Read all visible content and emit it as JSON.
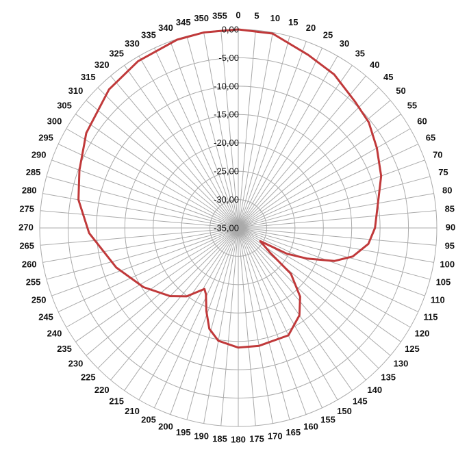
{
  "chart_data": {
    "type": "polar",
    "x": [
      0,
      10,
      22,
      32,
      43,
      51,
      60,
      70,
      80,
      90,
      97,
      104,
      109,
      114,
      118,
      121,
      128,
      131,
      138,
      145,
      155,
      170,
      180,
      190,
      196,
      201,
      206,
      209,
      217,
      225,
      238,
      252,
      268,
      280,
      290,
      302,
      317,
      329,
      342,
      350
    ],
    "series": [
      {
        "color": "#c0393a",
        "values": [
          0,
          -0.2,
          -2.1,
          -3.1,
          -4.7,
          -5.4,
          -6.8,
          -8.2,
          -10.0,
          -10.9,
          -11.9,
          -14.2,
          -17.1,
          -21.7,
          -25.3,
          -30.5,
          -27.8,
          -22.7,
          -18.7,
          -16.2,
          -14.1,
          -13.9,
          -13.9,
          -14.8,
          -16.5,
          -19.3,
          -22.0,
          -22.7,
          -19.9,
          -18.0,
          -15.3,
          -12.4,
          -8.7,
          -6.4,
          -5.2,
          -3.4,
          -1.6,
          -0.7,
          -0.1,
          0
        ]
      }
    ],
    "ylim": [
      -35,
      0
    ],
    "yticks": [
      {
        "value": 0,
        "label": "0,00"
      },
      {
        "value": -5,
        "label": "-5,00"
      },
      {
        "value": -10,
        "label": "-10,00"
      },
      {
        "value": -15,
        "label": "-15,00"
      },
      {
        "value": -20,
        "label": "-20,00"
      },
      {
        "value": -25,
        "label": "-25,00"
      },
      {
        "value": -30,
        "label": "-30,00"
      },
      {
        "value": -35,
        "label": "-35,00"
      }
    ],
    "xticks": [
      0,
      5,
      10,
      15,
      20,
      25,
      30,
      35,
      40,
      45,
      50,
      55,
      60,
      65,
      70,
      75,
      80,
      85,
      90,
      95,
      100,
      105,
      110,
      115,
      120,
      125,
      130,
      135,
      140,
      145,
      150,
      155,
      160,
      165,
      170,
      175,
      180,
      185,
      190,
      195,
      200,
      205,
      210,
      215,
      220,
      225,
      230,
      235,
      240,
      245,
      250,
      255,
      260,
      265,
      270,
      275,
      280,
      285,
      290,
      295,
      300,
      305,
      310,
      315,
      320,
      325,
      330,
      335,
      340,
      345,
      350,
      355
    ],
    "grid": true
  }
}
